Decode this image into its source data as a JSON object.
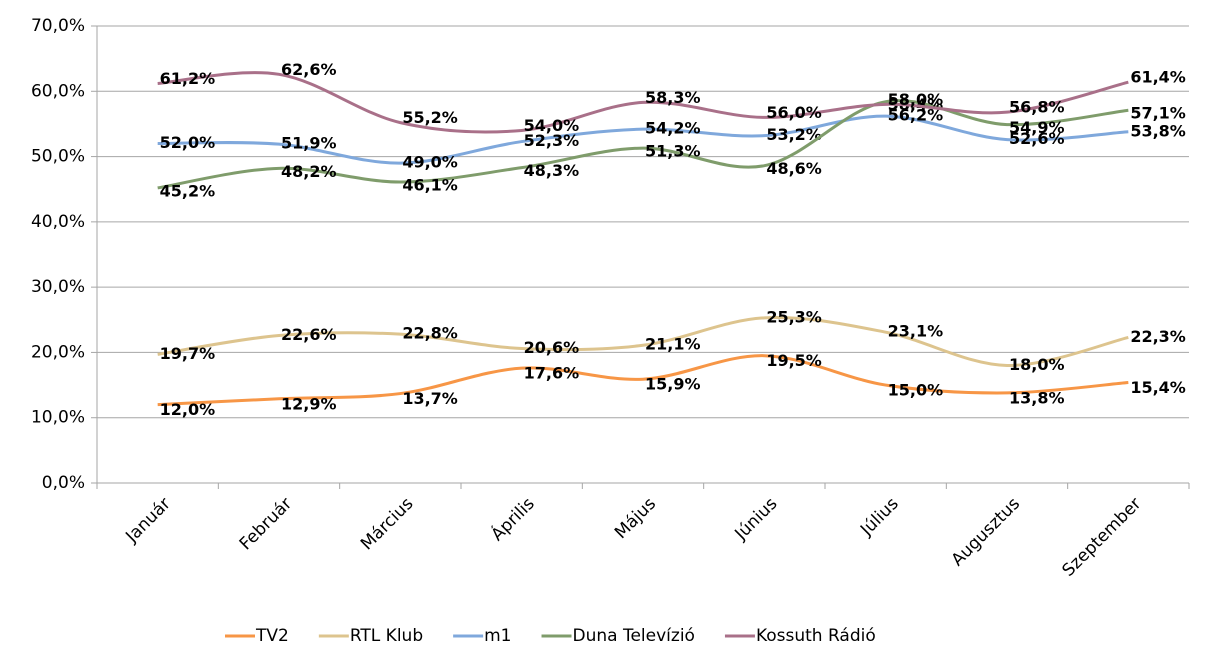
{
  "chart_data": {
    "type": "line",
    "categories": [
      "Január",
      "Február",
      "Március",
      "Április",
      "Május",
      "Június",
      "Július",
      "Augusztus",
      "Szeptember"
    ],
    "series": [
      {
        "name": "TV2",
        "color": "#f79646",
        "values": [
          12.0,
          12.9,
          13.7,
          17.6,
          15.9,
          19.5,
          15.0,
          13.8,
          15.4
        ],
        "value_labels": [
          "12,0%",
          "12,9%",
          "13,7%",
          "17,6%",
          "15,9%",
          "19,5%",
          "15,0%",
          "13,8%",
          "15,4%"
        ]
      },
      {
        "name": "RTL Klub",
        "color": "#ddc48e",
        "values": [
          19.7,
          22.6,
          22.8,
          20.6,
          21.1,
          25.3,
          23.1,
          18.0,
          22.3
        ],
        "value_labels": [
          "19,7%",
          "22,6%",
          "22,8%",
          "20,6%",
          "21,1%",
          "25,3%",
          "23,1%",
          "18,0%",
          "22,3%"
        ]
      },
      {
        "name": "m1",
        "color": "#7fa8dc",
        "values": [
          52.0,
          51.9,
          49.0,
          52.3,
          54.2,
          53.2,
          56.2,
          52.6,
          53.8
        ],
        "value_labels": [
          "52,0%",
          "51,9%",
          "49,0%",
          "52,3%",
          "54,2%",
          "53,2%",
          "56,2%",
          "52,6%",
          "53,8%"
        ]
      },
      {
        "name": "Duna Televízió",
        "color": "#7f9c6b",
        "values": [
          45.2,
          48.2,
          46.1,
          48.3,
          51.3,
          48.6,
          58.4,
          54.9,
          57.1
        ],
        "value_labels": [
          "45,2%",
          "48,2%",
          "46,1%",
          "48,3%",
          "51,3%",
          "48,6%",
          "58,4%",
          "54,9%",
          "57,1%"
        ]
      },
      {
        "name": "Kossuth Rádió",
        "color": "#a97089",
        "values": [
          61.2,
          62.6,
          55.2,
          54.0,
          58.3,
          56.0,
          58.0,
          56.8,
          61.4
        ],
        "value_labels": [
          "61,2%",
          "62,6%",
          "55,2%",
          "54,0%",
          "58,3%",
          "56,0%",
          "58,0%",
          "56,8%",
          "61,4%"
        ]
      }
    ],
    "ylim": [
      0,
      70
    ],
    "yticks": [
      {
        "value": 0,
        "label": "0,0%"
      },
      {
        "value": 10,
        "label": "10,0%"
      },
      {
        "value": 20,
        "label": "20,0%"
      },
      {
        "value": 30,
        "label": "30,0%"
      },
      {
        "value": 40,
        "label": "40,0%"
      },
      {
        "value": 50,
        "label": "50,0%"
      },
      {
        "value": 60,
        "label": "60,0%"
      },
      {
        "value": 70,
        "label": "70,0%"
      }
    ],
    "grid": true,
    "legend": "bottom"
  }
}
